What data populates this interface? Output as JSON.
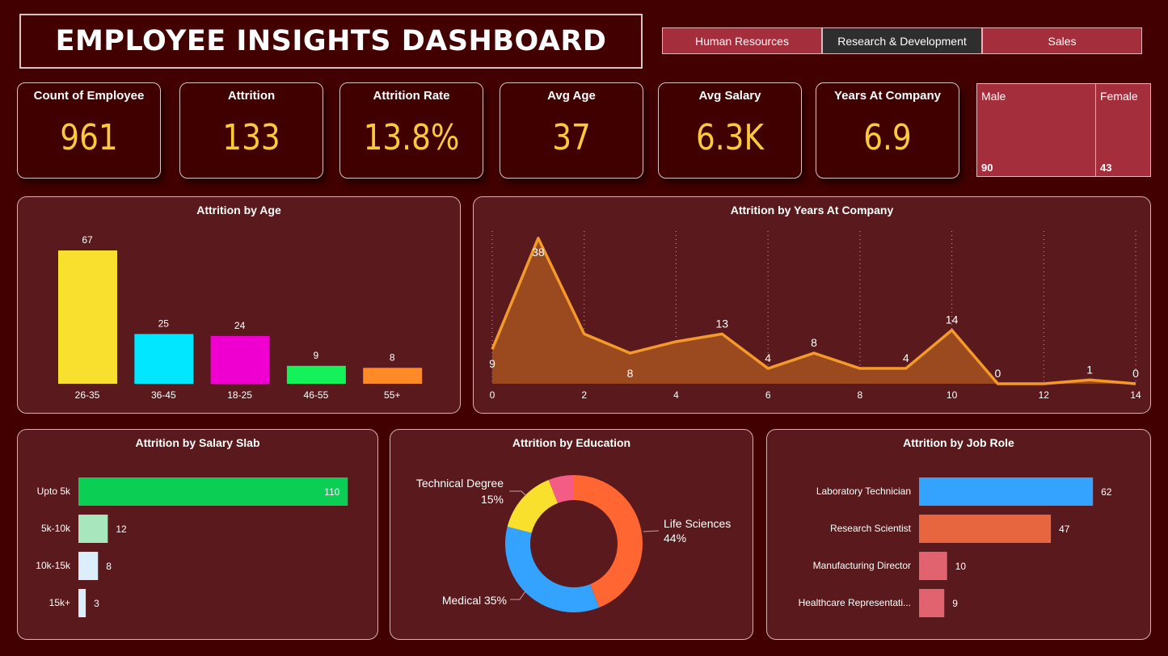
{
  "header": {
    "title": "EMPLOYEE INSIGHTS DASHBOARD"
  },
  "tabs": [
    {
      "label": "Human Resources",
      "active": false
    },
    {
      "label": "Research & Development",
      "active": true
    },
    {
      "label": "Sales",
      "active": false
    }
  ],
  "kpis": [
    {
      "label": "Count of Employee",
      "value": "961"
    },
    {
      "label": "Attrition",
      "value": "133"
    },
    {
      "label": "Attrition Rate",
      "value": "13.8%"
    },
    {
      "label": "Avg Age",
      "value": "37"
    },
    {
      "label": "Avg Salary",
      "value": "6.3K"
    },
    {
      "label": "Years At Company",
      "value": "6.9"
    }
  ],
  "gender": [
    {
      "label": "Male",
      "value": "90"
    },
    {
      "label": "Female",
      "value": "43"
    }
  ],
  "colors": {
    "background": "#420000",
    "panel": "#5a191c",
    "kpi_value": "#fcc93d",
    "tab": "#a42e3c",
    "tab_active": "#2e2e2e"
  },
  "chart_data": [
    {
      "type": "bar",
      "title": "Attrition by Age",
      "categories": [
        "26-35",
        "36-45",
        "18-25",
        "46-55",
        "55+"
      ],
      "values": [
        67,
        25,
        24,
        9,
        8
      ],
      "colors": [
        "#f9e02f",
        "#00e7ff",
        "#f000d0",
        "#14f259",
        "#ff8a26"
      ]
    },
    {
      "type": "area",
      "title": "Attrition by Years At Company",
      "x": [
        0,
        1,
        2,
        3,
        4,
        5,
        6,
        7,
        8,
        9,
        10,
        11,
        12,
        13,
        14
      ],
      "values": [
        9,
        38,
        13,
        8,
        11,
        13,
        4,
        8,
        4,
        4,
        14,
        0,
        0,
        1,
        0
      ],
      "data_labels": {
        "0": 9,
        "1": 38,
        "3": 8,
        "5": 13,
        "6": 4,
        "7": 8,
        "9": 4,
        "10": 14,
        "11": 0,
        "13": 1,
        "14": 0
      },
      "xticks": [
        0,
        2,
        4,
        6,
        8,
        10,
        12,
        14
      ],
      "color": "#f39a2a",
      "grid": "vertical-dotted"
    },
    {
      "type": "bar",
      "orientation": "horizontal",
      "title": "Attrition by Salary Slab",
      "categories": [
        "Upto 5k",
        "5k-10k",
        "10k-15k",
        "15k+"
      ],
      "values": [
        110,
        12,
        8,
        3
      ],
      "colors": [
        "#0bce54",
        "#a8e6be",
        "#daeefb",
        "#daeefb"
      ]
    },
    {
      "type": "pie",
      "donut": true,
      "title": "Attrition by Education",
      "slices": [
        {
          "label": "Life Sciences",
          "value": 44,
          "text": "Life Sciences",
          "pct": "44%",
          "color": "#ff6632"
        },
        {
          "label": "Medical",
          "value": 35,
          "text": "Medical 35%",
          "color": "#33a3ff"
        },
        {
          "label": "Technical Degree",
          "value": 15,
          "text": "Technical Degree",
          "pct": "15%",
          "color": "#f8e02c"
        },
        {
          "label": "",
          "value": 6,
          "color": "#f45b85"
        }
      ]
    },
    {
      "type": "bar",
      "orientation": "horizontal",
      "title": "Attrition by Job Role",
      "categories": [
        "Laboratory Technician",
        "Research Scientist",
        "Manufacturing Director",
        "Healthcare Representati..."
      ],
      "values": [
        62,
        47,
        10,
        9
      ],
      "colors": [
        "#33a3ff",
        "#e8663f",
        "#e0636f",
        "#e0636f"
      ]
    }
  ]
}
